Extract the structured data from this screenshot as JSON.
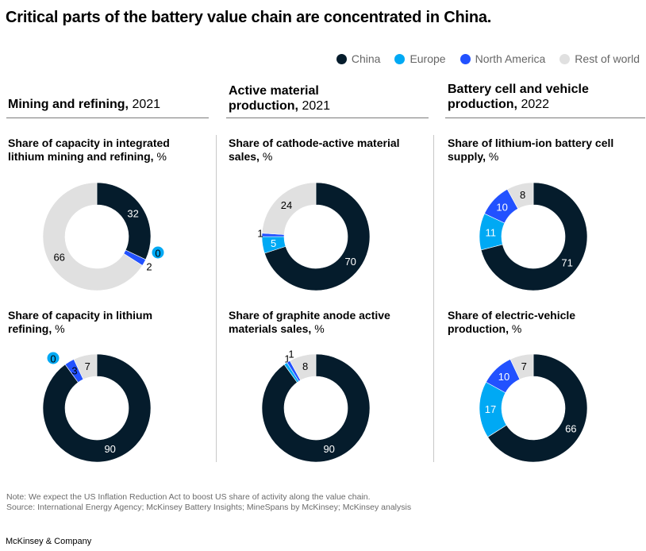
{
  "title": "Critical parts of the battery value chain are concentrated in China.",
  "colors": {
    "china": "#051c2c",
    "europe": "#00a9f4",
    "north_america": "#2251ff",
    "rest": "#e0e0e0"
  },
  "legend": [
    {
      "key": "china",
      "label": "China"
    },
    {
      "key": "europe",
      "label": "Europe"
    },
    {
      "key": "north_america",
      "label": "North America"
    },
    {
      "key": "rest",
      "label": "Rest of world"
    }
  ],
  "columns": [
    {
      "title": "Mining and refining,",
      "year": "2021"
    },
    {
      "title_line1": "Active material",
      "title_line2": "production,",
      "year": "2021"
    },
    {
      "title_line1": "Battery cell and vehicle",
      "title_line2": "production,",
      "year": "2022"
    }
  ],
  "chart_data": [
    {
      "type": "pie",
      "subtype": "donut",
      "title_line1": "Share of capacity in integrated",
      "title_line2": "lithium mining and refining,",
      "unit": "%",
      "series": [
        {
          "name": "China",
          "value": 32
        },
        {
          "name": "Europe",
          "value": 0
        },
        {
          "name": "North America",
          "value": 2
        },
        {
          "name": "Rest of world",
          "value": 66
        }
      ]
    },
    {
      "type": "pie",
      "subtype": "donut",
      "title_line1": "Share of cathode-active material",
      "title_line2": "sales,",
      "unit": "%",
      "series": [
        {
          "name": "China",
          "value": 70
        },
        {
          "name": "Europe",
          "value": 5
        },
        {
          "name": "North America",
          "value": 1
        },
        {
          "name": "Rest of world",
          "value": 24
        }
      ]
    },
    {
      "type": "pie",
      "subtype": "donut",
      "title_line1": "Share of lithium-ion battery cell",
      "title_line2": "supply,",
      "unit": "%",
      "series": [
        {
          "name": "China",
          "value": 71
        },
        {
          "name": "Europe",
          "value": 11
        },
        {
          "name": "North America",
          "value": 10
        },
        {
          "name": "Rest of world",
          "value": 8
        }
      ]
    },
    {
      "type": "pie",
      "subtype": "donut",
      "title_line1": "Share of capacity in lithium",
      "title_line2": "refining,",
      "unit": "%",
      "series": [
        {
          "name": "China",
          "value": 90
        },
        {
          "name": "Europe",
          "value": 0
        },
        {
          "name": "North America",
          "value": 3
        },
        {
          "name": "Rest of world",
          "value": 7
        }
      ]
    },
    {
      "type": "pie",
      "subtype": "donut",
      "title_line1": "Share of graphite anode active",
      "title_line2": "materials sales,",
      "unit": "%",
      "series": [
        {
          "name": "China",
          "value": 90
        },
        {
          "name": "Europe",
          "value": 1
        },
        {
          "name": "North America",
          "value": 1
        },
        {
          "name": "Rest of world",
          "value": 8
        }
      ]
    },
    {
      "type": "pie",
      "subtype": "donut",
      "title_line1": "Share of electric-vehicle",
      "title_line2": "production,",
      "unit": "%",
      "series": [
        {
          "name": "China",
          "value": 66
        },
        {
          "name": "Europe",
          "value": 17
        },
        {
          "name": "North America",
          "value": 10
        },
        {
          "name": "Rest of world",
          "value": 7
        }
      ]
    }
  ],
  "note": "Note: We expect the US Inflation Reduction Act to boost US share of activity along the value chain.",
  "source": "Source: International Energy Agency; McKinsey Battery Insights; MineSpans by McKinsey; McKinsey analysis",
  "brand": "McKinsey & Company"
}
